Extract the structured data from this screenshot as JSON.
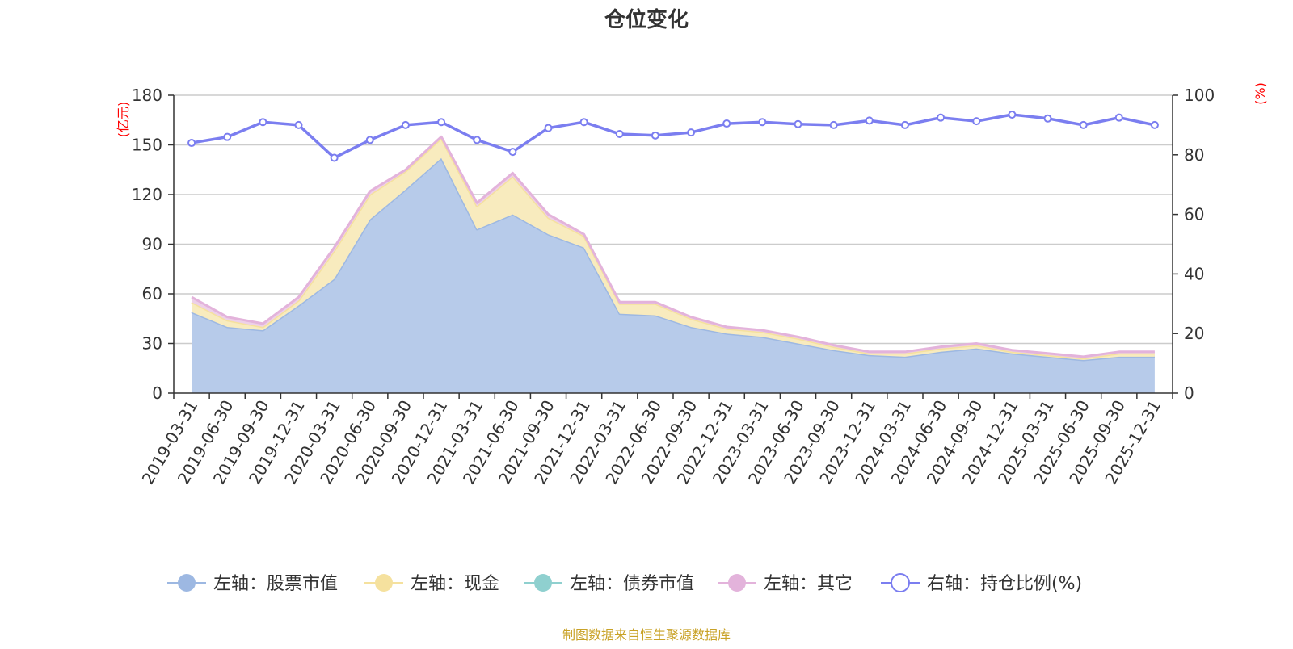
{
  "chart_data": {
    "type": "area",
    "title": "仓位变化",
    "source_note": "制图数据来自恒生聚源数据库",
    "left_axis": {
      "unit": "(亿元)",
      "ylim": [
        0,
        180
      ],
      "ticks": [
        0,
        30,
        60,
        90,
        120,
        150,
        180
      ]
    },
    "right_axis": {
      "unit": "(%)",
      "ylim": [
        0,
        100
      ],
      "ticks": [
        0,
        20,
        40,
        60,
        80,
        100
      ]
    },
    "categories": [
      "2019-03-31",
      "2019-06-30",
      "2019-09-30",
      "2019-12-31",
      "2020-03-31",
      "2020-06-30",
      "2020-09-30",
      "2020-12-31",
      "2021-03-31",
      "2021-06-30",
      "2021-09-30",
      "2021-12-31",
      "2022-03-31",
      "2022-06-30",
      "2022-09-30",
      "2022-12-31",
      "2023-03-31",
      "2023-06-30",
      "2023-09-30",
      "2023-12-31",
      "2024-03-31",
      "2024-06-30",
      "2024-09-30",
      "2024-12-31",
      "2025-03-31",
      "2025-06-30",
      "2025-09-30",
      "2025-12-31"
    ],
    "series": [
      {
        "name": "左轴：股票市值",
        "axis": "left",
        "type": "area",
        "color": "#9db8e2",
        "fill": "#b7cbea",
        "values": [
          49,
          40,
          38,
          53,
          69,
          105,
          123,
          142,
          99,
          108,
          96,
          88,
          48,
          47,
          40,
          36,
          34,
          30,
          26,
          23,
          22,
          25,
          27,
          24,
          22,
          20,
          22,
          22
        ]
      },
      {
        "name": "左轴：现金",
        "axis": "left",
        "type": "area",
        "color": "#f5e19e",
        "fill": "#f8ebbe",
        "values": [
          6,
          4,
          2,
          3,
          17,
          15,
          11,
          12,
          14,
          23,
          10,
          7,
          6,
          7,
          5,
          3,
          3,
          3,
          2,
          1,
          2,
          2,
          2,
          1,
          1,
          1,
          2,
          2
        ]
      },
      {
        "name": "左轴：债券市值",
        "axis": "left",
        "type": "area",
        "color": "#8fd0cf",
        "fill": "#bde4e3",
        "values": [
          0,
          0,
          0,
          0,
          0,
          0,
          0,
          0,
          0,
          0,
          0,
          0,
          0,
          0,
          0,
          0,
          0,
          0,
          0,
          0,
          0,
          0,
          0,
          0,
          0,
          0,
          0,
          0
        ]
      },
      {
        "name": "左轴：其它",
        "axis": "left",
        "type": "area",
        "color": "#e3b3db",
        "fill": "#edd0e8",
        "values": [
          3,
          2,
          2,
          2,
          2,
          2,
          1,
          1,
          2,
          2,
          2,
          1,
          1,
          1,
          1,
          1,
          1,
          1,
          1,
          1,
          1,
          1,
          1,
          1,
          1,
          1,
          1,
          1
        ]
      },
      {
        "name": "右轴：持仓比例(%)",
        "axis": "right",
        "type": "line",
        "color": "#7b7ef0",
        "values": [
          84,
          86,
          91,
          90,
          79,
          85,
          90,
          91,
          85,
          81,
          89,
          91,
          87,
          86.5,
          87.5,
          90.5,
          91,
          90.3,
          90,
          91.5,
          90,
          92.5,
          91.3,
          93.5,
          92.2,
          90,
          92.5,
          90
        ]
      }
    ],
    "legend": [
      "左轴：股票市值",
      "左轴：现金",
      "左轴：债券市值",
      "左轴：其它",
      "右轴：持仓比例(%)"
    ],
    "legend_position": "bottom-center",
    "grid": true
  }
}
